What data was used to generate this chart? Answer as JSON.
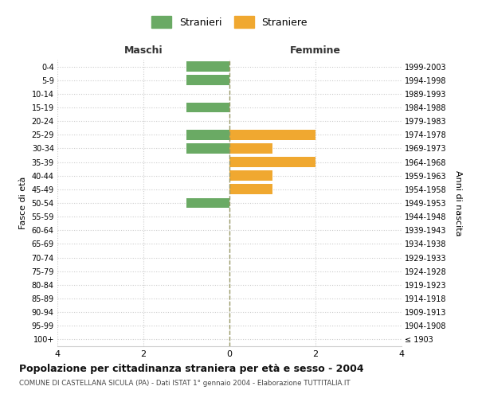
{
  "age_groups": [
    "100+",
    "95-99",
    "90-94",
    "85-89",
    "80-84",
    "75-79",
    "70-74",
    "65-69",
    "60-64",
    "55-59",
    "50-54",
    "45-49",
    "40-44",
    "35-39",
    "30-34",
    "25-29",
    "20-24",
    "15-19",
    "10-14",
    "5-9",
    "0-4"
  ],
  "birth_years": [
    "≤ 1903",
    "1904-1908",
    "1909-1913",
    "1914-1918",
    "1919-1923",
    "1924-1928",
    "1929-1933",
    "1934-1938",
    "1939-1943",
    "1944-1948",
    "1949-1953",
    "1954-1958",
    "1959-1963",
    "1964-1968",
    "1969-1973",
    "1974-1978",
    "1979-1983",
    "1984-1988",
    "1989-1993",
    "1994-1998",
    "1999-2003"
  ],
  "maschi": [
    0,
    0,
    0,
    0,
    0,
    0,
    0,
    0,
    0,
    0,
    1,
    0,
    0,
    0,
    1,
    1,
    0,
    1,
    0,
    1,
    1
  ],
  "femmine": [
    0,
    0,
    0,
    0,
    0,
    0,
    0,
    0,
    0,
    0,
    0,
    1,
    1,
    2,
    1,
    2,
    0,
    0,
    0,
    0,
    0
  ],
  "maschi_color": "#6aaa64",
  "femmine_color": "#f0a830",
  "title": "Popolazione per cittadinanza straniera per età e sesso - 2004",
  "subtitle": "COMUNE DI CASTELLANA SICULA (PA) - Dati ISTAT 1° gennaio 2004 - Elaborazione TUTTITALIA.IT",
  "ylabel_left": "Fasce di età",
  "ylabel_right": "Anni di nascita",
  "xlabel_maschi": "Maschi",
  "xlabel_femmine": "Femmine",
  "legend_stranieri": "Stranieri",
  "legend_straniere": "Straniere",
  "xlim": 4,
  "background_color": "#ffffff",
  "grid_color": "#cccccc",
  "bar_height": 0.75
}
